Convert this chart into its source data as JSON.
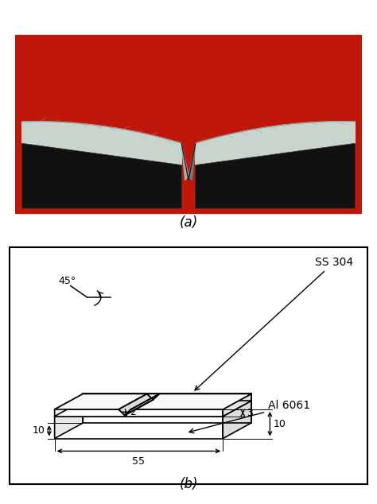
{
  "fig_width": 4.74,
  "fig_height": 6.34,
  "bg_color": "#ffffff",
  "label_a": "(a)",
  "label_b": "(b)",
  "ss_label": "SS 304",
  "al_label": "Al 6061",
  "dim_45": "45°",
  "dim_2": "2",
  "dim_3": "3",
  "dim_10_right": "10",
  "dim_55": "55",
  "dim_10_bot": "10",
  "photo_bg": "#c0170a",
  "metal_top": "#c8d4cc",
  "metal_dark": "#111111",
  "notch_dark": "#555555"
}
